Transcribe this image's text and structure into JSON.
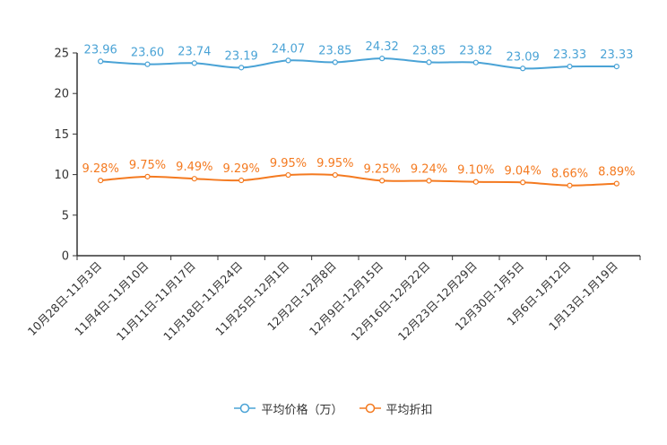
{
  "chart_data": {
    "type": "line",
    "categories": [
      "10月28日-11月3日",
      "11月4日-11月10日",
      "11月11日-11月17日",
      "11月18日-11月24日",
      "11月25日-12月1日",
      "12月2日-12月8日",
      "12月9日-12月15日",
      "12月16日-12月22日",
      "12月23日-12月29日",
      "12月30日-1月5日",
      "1月6日-1月12日",
      "1月13日-1月19日"
    ],
    "series": [
      {
        "name": "平均价格（万）",
        "color": "#4aa3d6",
        "values": [
          23.96,
          23.6,
          23.74,
          23.19,
          24.07,
          23.85,
          24.32,
          23.85,
          23.82,
          23.09,
          23.33,
          23.33
        ],
        "labels": [
          "23.96",
          "23.60",
          "23.74",
          "23.19",
          "24.07",
          "23.85",
          "24.32",
          "23.85",
          "23.82",
          "23.09",
          "23.33",
          "23.33"
        ]
      },
      {
        "name": "平均折扣",
        "color": "#f47a20",
        "values": [
          9.28,
          9.75,
          9.49,
          9.29,
          9.95,
          9.95,
          9.25,
          9.24,
          9.1,
          9.04,
          8.66,
          8.89
        ],
        "labels": [
          "9.28%",
          "9.75%",
          "9.49%",
          "9.29%",
          "9.95%",
          "9.95%",
          "9.25%",
          "9.24%",
          "9.10%",
          "9.04%",
          "8.66%",
          "8.89%"
        ]
      }
    ],
    "yticks": [
      0,
      5,
      10,
      15,
      20,
      25
    ],
    "ylim": [
      0,
      25
    ],
    "legend_position": "bottom-center"
  }
}
